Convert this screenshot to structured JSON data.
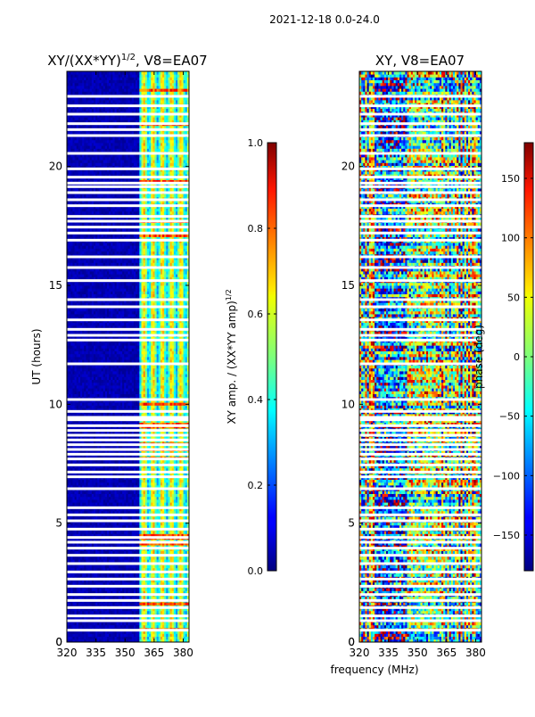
{
  "figure": {
    "suptitle": "2021-12-18 0.0-24.0",
    "xlabel_shared": "frequency (MHz)"
  },
  "chart_data": [
    {
      "type": "heatmap",
      "title": "XY/(XX*YY)^{1/2}, V8=EA07",
      "title_main": "XY/(XX*YY)",
      "title_exp": "1/2",
      "title_tail": ", V8=EA07",
      "xlabel": "",
      "ylabel": "UT (hours)",
      "xlim": [
        320,
        383
      ],
      "ylim": [
        0,
        24
      ],
      "xticks": [
        320,
        335,
        350,
        365,
        380
      ],
      "yticks": [
        0,
        5,
        10,
        15,
        20
      ],
      "colormap": "jet",
      "colorbar": {
        "label_main": "XY amp. / (XX*YY amp)",
        "label_exp": "1/2",
        "range": [
          0.0,
          1.0
        ],
        "ticks": [
          0.0,
          0.2,
          0.4,
          0.6,
          0.8,
          1.0
        ],
        "tick_labels": [
          "0.0",
          "0.2",
          "0.4",
          "0.6",
          "0.8",
          "1.0"
        ]
      },
      "description_of_data": "Mostly near 0 (dark blue) below ~357 MHz; 0.3-0.7 values in channels ~357-380 MHz; white horizontal gaps are flagged times"
    },
    {
      "type": "heatmap",
      "title": "XY, V8=EA07",
      "xlabel": "frequency (MHz)",
      "ylabel": "",
      "xlim": [
        320,
        383
      ],
      "ylim": [
        0,
        24
      ],
      "xticks": [
        320,
        335,
        350,
        365,
        380
      ],
      "yticks": [
        0,
        5,
        10,
        15,
        20
      ],
      "colormap": "jet",
      "colorbar": {
        "label": "phase (deg)",
        "range": [
          -180,
          180
        ],
        "ticks": [
          -150,
          -100,
          -50,
          0,
          50,
          100,
          150
        ],
        "tick_labels": [
          "−150",
          "−100",
          "−50",
          "0",
          "50",
          "100",
          "150"
        ]
      }
    }
  ],
  "flag_gaps_hours": [
    0.5,
    0.9,
    1.1,
    1.45,
    1.75,
    2.0,
    2.35,
    2.65,
    2.95,
    3.3,
    3.65,
    3.95,
    4.2,
    4.4,
    4.75,
    5.1,
    5.35,
    5.65,
    6.45,
    6.95,
    7.15,
    7.45,
    7.7,
    7.9,
    8.1,
    8.3,
    8.5,
    8.7,
    8.9,
    9.1,
    9.35,
    9.45,
    9.7,
    10.2,
    11.7,
    12.7,
    12.9,
    13.15,
    13.55,
    14.1,
    14.4,
    15.2,
    15.75,
    16.2,
    16.9,
    17.2,
    17.45,
    17.7,
    17.9,
    18.35,
    18.6,
    18.9,
    19.15,
    19.3,
    19.55,
    19.9,
    20.55,
    21.3,
    21.55,
    21.8,
    22.2,
    22.55,
    22.95
  ]
}
